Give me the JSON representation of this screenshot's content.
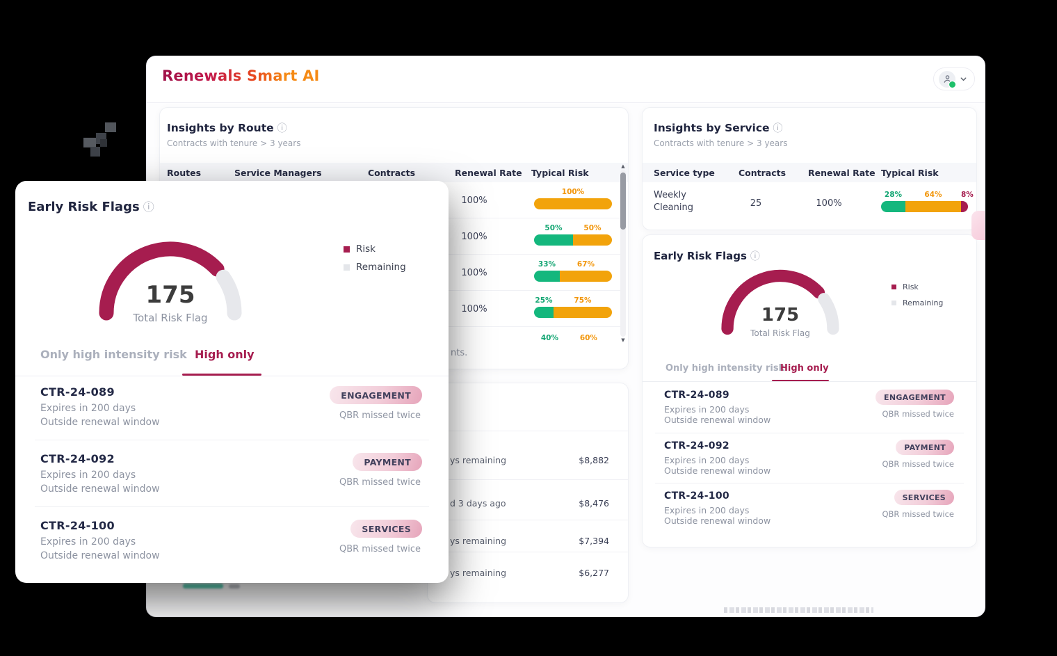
{
  "app": {
    "title": "Renewals Smart AI"
  },
  "route_panel": {
    "title": "Insights by Route",
    "subtitle": "Contracts with tenure > 3 years",
    "columns": {
      "c1": "Routes",
      "c2": "Service Managers",
      "c3": "Contracts",
      "c4": "Renewal Rate",
      "c5": "Typical Risk"
    },
    "rows": [
      {
        "renewal_rate": "100%",
        "seg1_label": "100%",
        "seg1": 100
      },
      {
        "renewal_rate": "100%",
        "seg1_label": "50%",
        "seg1": 50,
        "seg2_label": "50%",
        "seg2": 50
      },
      {
        "renewal_rate": "100%",
        "seg1_label": "33%",
        "seg1": 33,
        "seg2_label": "67%",
        "seg2": 67
      },
      {
        "renewal_rate": "100%",
        "seg1_label": "25%",
        "seg1": 25,
        "seg2_label": "75%",
        "seg2": 75
      },
      {
        "seg1_label": "40%",
        "seg1": 40,
        "seg2_label": "60%",
        "seg2": 60
      }
    ],
    "footer_fragment": "nts."
  },
  "service_panel": {
    "title": "Insights by Service",
    "subtitle": "Contracts with tenure > 3 years",
    "columns": {
      "c1": "Service type",
      "c2": "Contracts",
      "c3": "Renewal Rate",
      "c4": "Typical Risk"
    },
    "row": {
      "service_type_line1": "Weekly",
      "service_type_line2": "Cleaning",
      "contracts": "25",
      "renewal_rate": "100%",
      "seg1_label": "28%",
      "seg1": 28,
      "seg2_label": "64%",
      "seg2": 64,
      "seg3_label": "8%",
      "seg3": 8
    }
  },
  "risk_panel": {
    "title": "Early Risk Flags",
    "gauge": {
      "value": "175",
      "label": "Total Risk Flag",
      "risk_pct": 76
    },
    "legend": {
      "risk": "Risk",
      "remaining": "Remaining"
    },
    "tabs": {
      "inactive": "Only high intensity risk",
      "active": "High only"
    },
    "items": [
      {
        "id": "CTR-24-089",
        "expiry": "Expires in 200 days",
        "window": "Outside renewal window",
        "badge": "ENGAGEMENT",
        "note": "QBR missed twice"
      },
      {
        "id": "CTR-24-092",
        "expiry": "Expires in 200 days",
        "window": "Outside renewal window",
        "badge": "PAYMENT",
        "note": "QBR missed twice"
      },
      {
        "id": "CTR-24-100",
        "expiry": "Expires in 200 days",
        "window": "Outside renewal window",
        "badge": "SERVICES",
        "note": "QBR missed twice"
      }
    ]
  },
  "renewals_list_panel": {
    "rows": [
      {
        "left_fragment": "ys remaining",
        "amount": "$8,882"
      },
      {
        "left_fragment": "d 3 days ago",
        "amount": "$8,476"
      },
      {
        "left_fragment": "ys remaining",
        "amount": "$7,394"
      },
      {
        "left_fragment": "ys remaining",
        "amount": "$6,277"
      }
    ]
  },
  "colors": {
    "risk_maroon": "#A61D4F",
    "green": "#14B77D",
    "orange": "#F2A30B",
    "remaining_gray": "#E4E6EA",
    "title_gradient_start": "#9F1148",
    "title_gradient_end": "#F58A15",
    "status_dot_green": "#1FC06A"
  }
}
